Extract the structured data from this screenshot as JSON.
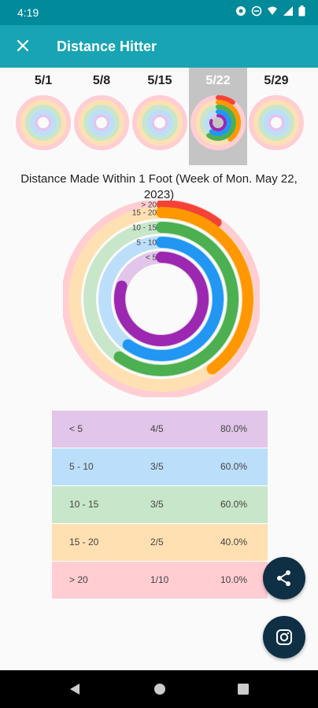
{
  "status": {
    "time": "4:19"
  },
  "app": {
    "title": "Distance Hitter"
  },
  "weeks": [
    "5/1",
    "5/8",
    "5/15",
    "5/22",
    "5/29"
  ],
  "selected_week": "5/22",
  "chart": {
    "title": "Distance Made Within 1 Foot (Week of Mon. May 22, 2023)"
  },
  "chart_data": {
    "type": "table",
    "title": "Distance Made Within 1 Foot (Week of Mon. May 22, 2023)",
    "categories": [
      "< 5",
      "5 - 10",
      "10 - 15",
      "15 - 20",
      "> 20"
    ],
    "ring_labels": [
      "> 20",
      "15 - 20",
      "10 - 15",
      "5 - 10",
      "< 5"
    ],
    "rows": [
      {
        "range": "< 5",
        "made": "4/5",
        "pct": "80.0%",
        "value": 0.8,
        "color": "#9c27b0",
        "bg": "#e1c6ea"
      },
      {
        "range": "5 - 10",
        "made": "3/5",
        "pct": "60.0%",
        "value": 0.6,
        "color": "#2196f3",
        "bg": "#bbdefb"
      },
      {
        "range": "10 - 15",
        "made": "3/5",
        "pct": "60.0%",
        "value": 0.6,
        "color": "#4caf50",
        "bg": "#c8e6c9"
      },
      {
        "range": "15 - 20",
        "made": "2/5",
        "pct": "40.0%",
        "value": 0.4,
        "color": "#ff9800",
        "bg": "#ffe0b2"
      },
      {
        "range": "> 20",
        "made": "1/10",
        "pct": "10.0%",
        "value": 0.1,
        "color": "#f44336",
        "bg": "#ffcdd2"
      }
    ]
  },
  "icons": {
    "close": "close-icon",
    "share": "share-icon",
    "instagram": "instagram-icon"
  }
}
